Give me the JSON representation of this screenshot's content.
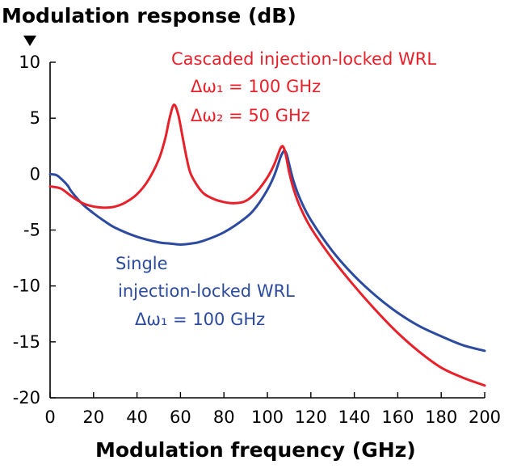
{
  "chart_data": {
    "type": "line",
    "title": "",
    "ylabel": "Modulation response (dB)",
    "xlabel": "Modulation frequency (GHz)",
    "xlim": [
      0,
      200
    ],
    "ylim": [
      -20,
      10
    ],
    "xticks": [
      "0",
      "20",
      "40",
      "60",
      "80",
      "100",
      "120",
      "140",
      "160",
      "180",
      "200"
    ],
    "yticks": [
      "10",
      "5",
      "0",
      "-5",
      "-10",
      "-15",
      "-20"
    ],
    "grid": false,
    "colors": {
      "cascaded": "#e8202a",
      "single": "#2b4aa0"
    },
    "series": [
      {
        "name": "Cascaded injection-locked WRL",
        "color": "#e8202a",
        "x": [
          0,
          5,
          10,
          15,
          20,
          25,
          30,
          35,
          40,
          45,
          50,
          53,
          55,
          57,
          59,
          61,
          63,
          65,
          70,
          75,
          80,
          85,
          90,
          95,
          100,
          103,
          105,
          106,
          107,
          108,
          109,
          110,
          112,
          115,
          120,
          130,
          140,
          150,
          160,
          170,
          180,
          190,
          200
        ],
        "values": [
          -1.1,
          -1.3,
          -2.0,
          -2.6,
          -2.9,
          -3.0,
          -2.9,
          -2.5,
          -1.8,
          -0.6,
          1.3,
          3.2,
          5.0,
          6.2,
          5.3,
          3.3,
          1.3,
          -0.1,
          -1.6,
          -2.2,
          -2.5,
          -2.6,
          -2.4,
          -1.6,
          -0.3,
          0.8,
          1.8,
          2.3,
          2.5,
          2.1,
          1.2,
          0.2,
          -1.3,
          -2.9,
          -4.8,
          -7.6,
          -10.0,
          -12.2,
          -14.2,
          -15.9,
          -17.3,
          -18.2,
          -18.9
        ]
      },
      {
        "name": "Single injection-locked WRL",
        "color": "#2b4aa0",
        "x": [
          0,
          3,
          5,
          8,
          10,
          15,
          20,
          25,
          30,
          40,
          50,
          55,
          60,
          65,
          70,
          80,
          90,
          95,
          100,
          103,
          105,
          106,
          107,
          108,
          109,
          110,
          112,
          115,
          120,
          130,
          140,
          150,
          160,
          170,
          180,
          190,
          200
        ],
        "values": [
          0.0,
          -0.1,
          -0.4,
          -1.0,
          -1.6,
          -2.7,
          -3.5,
          -4.2,
          -4.8,
          -5.6,
          -6.1,
          -6.2,
          -6.3,
          -6.2,
          -6.0,
          -5.2,
          -3.9,
          -2.9,
          -1.4,
          -0.2,
          0.9,
          1.5,
          1.9,
          2.1,
          1.7,
          0.9,
          -0.6,
          -2.2,
          -4.1,
          -6.9,
          -9.1,
          -10.9,
          -12.4,
          -13.6,
          -14.5,
          -15.3,
          -15.8
        ]
      }
    ],
    "annotations": {
      "cascaded": {
        "line1": "Cascaded injection-locked WRL",
        "line2": "Δω₁ = 100 GHz",
        "line3": "Δω₂ = 50 GHz"
      },
      "single": {
        "line1": "Single",
        "line2": "injection-locked WRL",
        "line3": "Δω₁ = 100 GHz"
      }
    }
  }
}
